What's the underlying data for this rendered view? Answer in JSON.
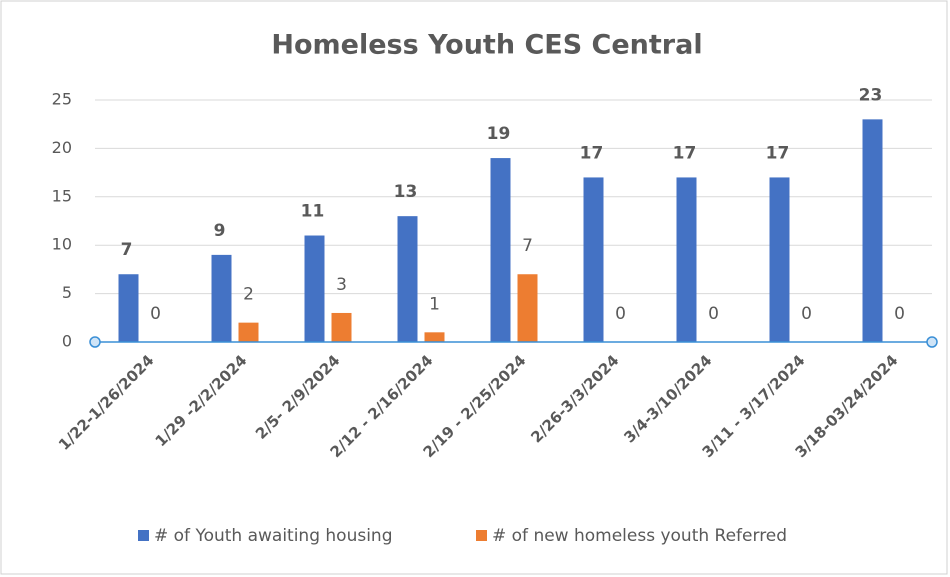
{
  "chart_data": {
    "type": "bar",
    "title": "Homeless Youth CES Central",
    "categories": [
      "1/22-1/26/2024",
      "1/29 -2/2/2024",
      "2/5- 2/9/2024",
      "2/12 - 2/16/2024",
      "2/19 - 2/25/2024",
      "2/26-3/3/2024",
      "3/4-3/10/2024",
      "3/11 - 3/17/2024",
      "3/18-03/24/2024"
    ],
    "series": [
      {
        "name": "# of Youth awaiting housing",
        "color": "#4472c4",
        "values": [
          7,
          9,
          11,
          13,
          19,
          17,
          17,
          17,
          23
        ]
      },
      {
        "name": "# of new homeless youth Referred",
        "color": "#ed7d31",
        "values": [
          0,
          2,
          3,
          1,
          7,
          0,
          0,
          0,
          0
        ]
      }
    ],
    "ylim": [
      0,
      25
    ],
    "yticks": [
      0,
      5,
      10,
      15,
      20,
      25
    ],
    "grid": true,
    "legend": "bottom"
  }
}
